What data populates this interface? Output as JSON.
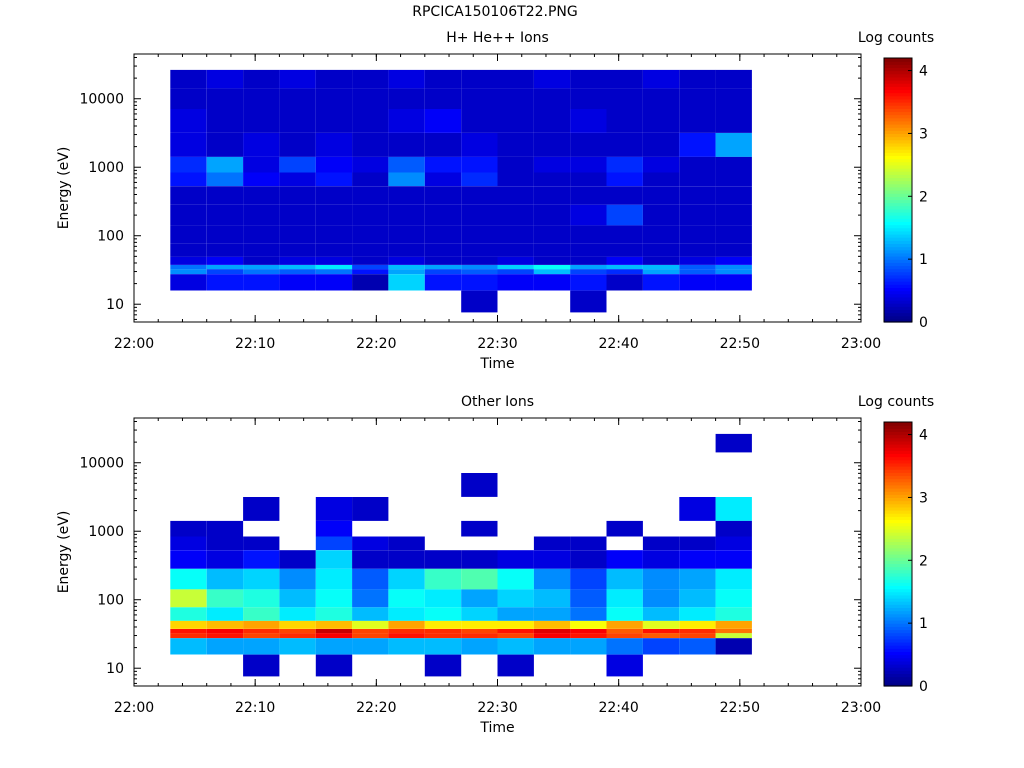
{
  "figure": {
    "title": "RPCICA150106T22.PNG"
  },
  "chart_data": [
    {
      "type": "heatmap",
      "title": "H+ He++ Ions",
      "xlabel": "Time",
      "ylabel": "Energy (eV)",
      "yscale": "log",
      "ylim": [
        5.5,
        45000
      ],
      "xlim": [
        "22:00",
        "23:00"
      ],
      "xticks": [
        "22:00",
        "22:10",
        "22:20",
        "22:30",
        "22:40",
        "22:50",
        "23:00"
      ],
      "yticks": [
        "10",
        "100",
        "1000",
        "10000"
      ],
      "colorbar": {
        "label": "Log counts",
        "range": [
          0,
          4.2
        ],
        "ticks": [
          "0",
          "1",
          "2",
          "3",
          "4"
        ],
        "colormap": "jet"
      },
      "time_bins": [
        "22:03",
        "22:06",
        "22:09",
        "22:12",
        "22:15",
        "22:18",
        "22:21",
        "22:24",
        "22:27",
        "22:30",
        "22:33",
        "22:36",
        "22:39",
        "22:42",
        "22:45",
        "22:48"
      ],
      "energy_bins": [
        20000,
        10000,
        5000,
        2000,
        1000,
        700,
        400,
        200,
        100,
        60,
        40,
        35,
        30,
        25,
        10
      ],
      "values": [
        [
          0.3,
          0.4,
          0.3,
          0.4,
          0.3,
          0.3,
          0.4,
          0.3,
          0.3,
          0.3,
          0.4,
          0.3,
          0.3,
          0.4,
          0.3,
          0.3
        ],
        [
          0.3,
          0.3,
          0.3,
          0.3,
          0.3,
          0.3,
          0.3,
          0.3,
          0.3,
          0.3,
          0.3,
          0.3,
          0.3,
          0.3,
          0.3,
          0.3
        ],
        [
          0.4,
          0.3,
          0.3,
          0.3,
          0.3,
          0.3,
          0.4,
          0.5,
          0.3,
          0.3,
          0.3,
          0.4,
          0.3,
          0.3,
          0.3,
          0.3
        ],
        [
          0.4,
          0.3,
          0.4,
          0.3,
          0.4,
          0.3,
          0.3,
          0.3,
          0.4,
          0.3,
          0.3,
          0.3,
          0.3,
          0.3,
          0.6,
          1.2
        ],
        [
          0.7,
          1.2,
          0.4,
          0.8,
          0.5,
          0.4,
          0.9,
          0.6,
          0.6,
          0.3,
          0.4,
          0.4,
          0.7,
          0.4,
          0.3,
          0.3
        ],
        [
          0.6,
          1.0,
          0.5,
          0.4,
          0.6,
          0.3,
          1.1,
          0.4,
          0.7,
          0.3,
          0.3,
          0.3,
          0.6,
          0.3,
          0.3,
          0.3
        ],
        [
          0.3,
          0.3,
          0.3,
          0.3,
          0.3,
          0.3,
          0.3,
          0.3,
          0.3,
          0.3,
          0.3,
          0.3,
          0.3,
          0.3,
          0.3,
          0.3
        ],
        [
          0.3,
          0.3,
          0.3,
          0.3,
          0.3,
          0.3,
          0.3,
          0.3,
          0.3,
          0.3,
          0.3,
          0.4,
          0.8,
          0.3,
          0.3,
          0.3
        ],
        [
          0.3,
          0.3,
          0.3,
          0.3,
          0.3,
          0.3,
          0.3,
          0.3,
          0.3,
          0.3,
          0.3,
          0.3,
          0.3,
          0.3,
          0.3,
          0.3
        ],
        [
          0.3,
          0.3,
          0.3,
          0.3,
          0.3,
          0.3,
          0.3,
          0.3,
          0.3,
          0.3,
          0.3,
          0.3,
          0.3,
          0.3,
          0.3,
          0.3
        ],
        [
          0.4,
          0.5,
          0.3,
          0.4,
          0.4,
          0.3,
          0.4,
          0.3,
          0.3,
          0.4,
          0.3,
          0.3,
          0.5,
          0.3,
          0.4,
          0.5
        ],
        [
          1.0,
          1.2,
          1.2,
          1.3,
          1.5,
          0.8,
          1.3,
          1.2,
          1.1,
          1.4,
          1.6,
          1.2,
          1.3,
          1.3,
          0.9,
          1.1
        ],
        [
          1.1,
          0.8,
          1.0,
          0.9,
          1.0,
          0.6,
          1.2,
          0.8,
          0.9,
          0.8,
          1.3,
          0.8,
          0.7,
          1.2,
          0.9,
          1.1
        ],
        [
          0.4,
          0.6,
          0.6,
          0.5,
          0.5,
          0.2,
          1.4,
          0.6,
          0.6,
          0.5,
          0.5,
          0.6,
          0.3,
          0.6,
          0.5,
          0.5
        ],
        [
          0.0,
          0.0,
          0.0,
          0.0,
          0.0,
          0.0,
          0.0,
          0.0,
          0.3,
          0.0,
          0.0,
          0.3,
          0.0,
          0.0,
          0.0,
          0.0
        ]
      ]
    },
    {
      "type": "heatmap",
      "title": "Other Ions",
      "xlabel": "Time",
      "ylabel": "Energy (eV)",
      "yscale": "log",
      "ylim": [
        5.5,
        45000
      ],
      "xlim": [
        "22:00",
        "23:00"
      ],
      "xticks": [
        "22:00",
        "22:10",
        "22:20",
        "22:30",
        "22:40",
        "22:50",
        "23:00"
      ],
      "yticks": [
        "10",
        "100",
        "1000",
        "10000"
      ],
      "colorbar": {
        "label": "Log counts",
        "range": [
          0,
          4.2
        ],
        "ticks": [
          "0",
          "1",
          "2",
          "3",
          "4"
        ],
        "colormap": "jet"
      },
      "time_bins": [
        "22:03",
        "22:06",
        "22:09",
        "22:12",
        "22:15",
        "22:18",
        "22:21",
        "22:24",
        "22:27",
        "22:30",
        "22:33",
        "22:36",
        "22:39",
        "22:42",
        "22:45",
        "22:48"
      ],
      "energy_bins": [
        20000,
        10000,
        5000,
        2000,
        1000,
        700,
        400,
        200,
        100,
        60,
        40,
        35,
        30,
        25,
        10
      ],
      "values": [
        [
          0.0,
          0.0,
          0.0,
          0.0,
          0.0,
          0.0,
          0.0,
          0.0,
          0.0,
          0.0,
          0.0,
          0.0,
          0.0,
          0.0,
          0.0,
          0.3
        ],
        [
          0.0,
          0.0,
          0.0,
          0.0,
          0.0,
          0.0,
          0.0,
          0.0,
          0.0,
          0.0,
          0.0,
          0.0,
          0.0,
          0.0,
          0.0,
          0.0
        ],
        [
          0.0,
          0.0,
          0.0,
          0.0,
          0.0,
          0.0,
          0.0,
          0.0,
          0.3,
          0.0,
          0.0,
          0.0,
          0.0,
          0.0,
          0.0,
          0.0
        ],
        [
          0.0,
          0.0,
          0.3,
          0.0,
          0.4,
          0.3,
          0.0,
          0.0,
          0.0,
          0.0,
          0.0,
          0.0,
          0.0,
          0.0,
          0.4,
          1.5
        ],
        [
          0.3,
          0.3,
          0.0,
          0.0,
          0.5,
          0.0,
          0.0,
          0.0,
          0.3,
          0.0,
          0.0,
          0.0,
          0.3,
          0.0,
          0.0,
          0.3
        ],
        [
          0.4,
          0.3,
          0.3,
          0.0,
          0.8,
          0.4,
          0.3,
          0.0,
          0.0,
          0.0,
          0.3,
          0.3,
          0.0,
          0.3,
          0.3,
          0.4
        ],
        [
          0.5,
          0.4,
          0.6,
          0.3,
          1.4,
          0.3,
          0.3,
          0.3,
          0.3,
          0.4,
          0.4,
          0.3,
          0.5,
          0.4,
          0.5,
          0.5
        ],
        [
          1.6,
          1.3,
          1.4,
          1.1,
          1.5,
          0.9,
          1.4,
          1.8,
          1.9,
          1.6,
          1.1,
          0.8,
          1.3,
          1.1,
          1.2,
          1.5
        ],
        [
          2.4,
          1.8,
          1.7,
          1.3,
          1.6,
          1.0,
          1.6,
          1.5,
          1.2,
          1.4,
          1.3,
          0.9,
          1.5,
          1.1,
          1.3,
          1.6
        ],
        [
          1.7,
          1.5,
          1.8,
          1.5,
          1.7,
          1.3,
          1.5,
          1.6,
          1.4,
          1.2,
          1.2,
          1.0,
          1.6,
          1.3,
          1.5,
          1.7
        ],
        [
          2.8,
          2.9,
          3.0,
          2.8,
          2.9,
          2.5,
          3.0,
          2.7,
          2.7,
          2.7,
          2.9,
          2.6,
          3.0,
          2.5,
          2.7,
          3.0
        ],
        [
          3.6,
          3.7,
          3.5,
          3.4,
          3.9,
          3.4,
          3.5,
          3.5,
          3.4,
          3.6,
          3.8,
          3.7,
          3.3,
          3.6,
          3.5,
          3.2
        ],
        [
          3.5,
          3.6,
          3.4,
          3.5,
          3.7,
          3.4,
          3.6,
          3.5,
          3.5,
          3.4,
          3.7,
          3.6,
          3.4,
          3.3,
          3.4,
          2.4
        ],
        [
          1.3,
          1.2,
          1.2,
          1.3,
          1.2,
          1.2,
          1.3,
          1.3,
          1.2,
          1.3,
          1.2,
          1.2,
          1.0,
          0.8,
          0.9,
          0.2
        ],
        [
          0.0,
          0.0,
          0.3,
          0.0,
          0.3,
          0.0,
          0.0,
          0.3,
          0.0,
          0.3,
          0.0,
          0.0,
          0.4,
          0.0,
          0.0,
          0.0
        ]
      ]
    }
  ]
}
